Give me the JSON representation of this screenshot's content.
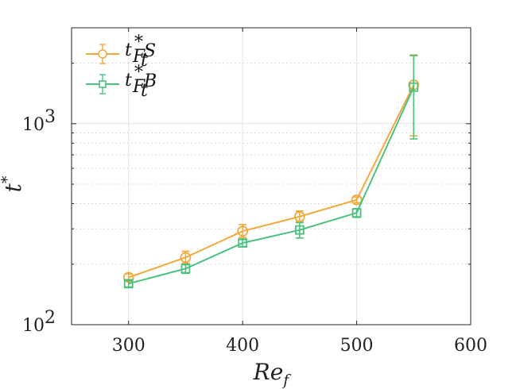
{
  "chart_data": {
    "type": "line",
    "x_scale": "linear",
    "y_scale": "log",
    "xlim": [
      250,
      600
    ],
    "ylim": [
      100,
      3000
    ],
    "xticks": [
      300,
      400,
      500,
      600
    ],
    "yticks": [
      100,
      1000
    ],
    "ytick_labels": [
      {
        "base": "10",
        "exp": "2"
      },
      {
        "base": "10",
        "exp": "3"
      }
    ],
    "xlabel": {
      "main": "Re",
      "sub": "f"
    },
    "ylabel": {
      "main": "t",
      "sup": "*"
    },
    "grid": true,
    "legend_position": "top-left",
    "series": [
      {
        "name": "t*_{F_t^S}",
        "legend": {
          "main": "t",
          "sup": "*",
          "sub": "F",
          "subsub": "t",
          "subsup": "S"
        },
        "color": "#F2A93B",
        "marker": "circle",
        "x": [
          300,
          350,
          400,
          450,
          500,
          550
        ],
        "y": [
          172,
          216,
          292,
          345,
          418,
          1560
        ],
        "err_low": [
          165,
          202,
          272,
          325,
          404,
          870
        ],
        "err_high": [
          179,
          232,
          315,
          368,
          432,
          2200
        ]
      },
      {
        "name": "t*_{F_t^B}",
        "legend": {
          "main": "t",
          "sup": "*",
          "sub": "F",
          "subsub": "t",
          "subsup": "B"
        },
        "color": "#4CC17E",
        "marker": "square",
        "x": [
          300,
          350,
          400,
          450,
          500,
          550
        ],
        "y": [
          160,
          190,
          255,
          296,
          360,
          1520
        ],
        "err_low": [
          154,
          180,
          245,
          270,
          342,
          840
        ],
        "err_high": [
          166,
          200,
          265,
          322,
          378,
          2180
        ]
      }
    ]
  }
}
